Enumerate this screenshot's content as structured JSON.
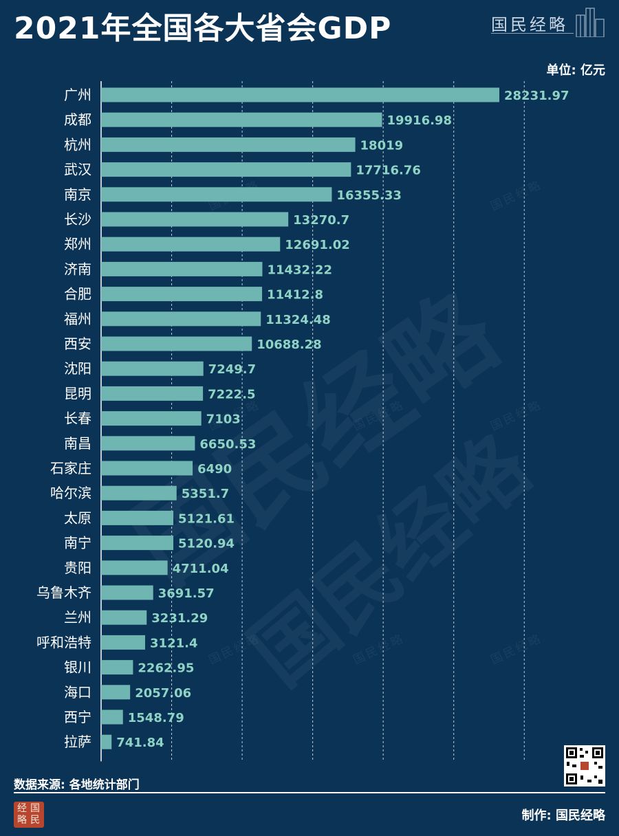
{
  "header": {
    "title": "2021年全国各大省会GDP",
    "brand": "国民经略"
  },
  "unit_label": "单位: 亿元",
  "footer": {
    "source": "数据来源: 各地统计部门",
    "credit": "制作: 国民经略",
    "logo_chars": [
      "经",
      "国",
      "略",
      "民"
    ]
  },
  "watermark_text": "国民经略",
  "colors": {
    "background": "#0b3356",
    "bar": "#6fb5b1",
    "value_label": "#8fd3c5",
    "grid": "#dfe8f0"
  },
  "chart_data": {
    "type": "bar",
    "orientation": "horizontal",
    "categories": [
      "广州",
      "成都",
      "杭州",
      "武汉",
      "南京",
      "长沙",
      "郑州",
      "济南",
      "合肥",
      "福州",
      "西安",
      "沈阳",
      "昆明",
      "长春",
      "南昌",
      "石家庄",
      "哈尔滨",
      "太原",
      "南宁",
      "贵阳",
      "乌鲁木齐",
      "兰州",
      "呼和浩特",
      "银川",
      "海口",
      "西宁",
      "拉萨"
    ],
    "values": [
      28231.97,
      19916.98,
      18019,
      17716.76,
      16355.33,
      13270.7,
      12691.02,
      11432.22,
      11412.8,
      11324.48,
      10688.28,
      7249.7,
      7222.5,
      7103,
      6650.53,
      6490,
      5351.7,
      5121.61,
      5120.94,
      4711.04,
      3691.57,
      3231.29,
      3121.4,
      2262.95,
      2057.06,
      1548.79,
      741.84
    ],
    "value_labels": [
      "28231.97",
      "19916.98",
      "18019",
      "17716.76",
      "16355.33",
      "13270.7",
      "12691.02",
      "11432.22",
      "11412.8",
      "11324.48",
      "10688.28",
      "7249.7",
      "7222.5",
      "7103",
      "6650.53",
      "6490",
      "5351.7",
      "5121.61",
      "5120.94",
      "4711.04",
      "3691.57",
      "3231.29",
      "3121.4",
      "2262.95",
      "2057.06",
      "1548.79",
      "741.84"
    ],
    "x_ticks": [
      0,
      5000,
      10000,
      15000,
      20000,
      25000,
      30000
    ],
    "xlim": [
      0,
      30000
    ],
    "title": "2021年全国各大省会GDP",
    "xlabel": "",
    "ylabel": "",
    "grid": "vertical dashed"
  }
}
